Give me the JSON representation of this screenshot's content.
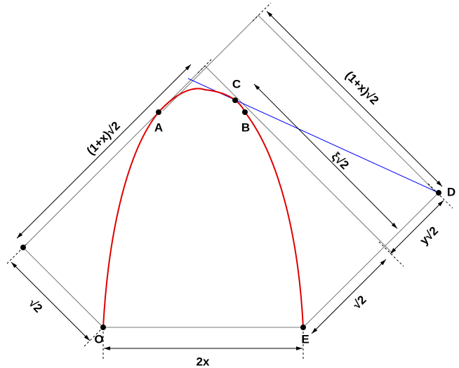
{
  "points": {
    "A": "A",
    "B": "B",
    "C": "C",
    "D": "D",
    "O": "O",
    "E": "E"
  },
  "dimensions": {
    "left_side": "(1+x)√2",
    "right_side": "(1+x)√2",
    "xi": "ξ√2",
    "y": "y√2",
    "left_root": "√2",
    "right_root": "√2",
    "base": "2x"
  }
}
